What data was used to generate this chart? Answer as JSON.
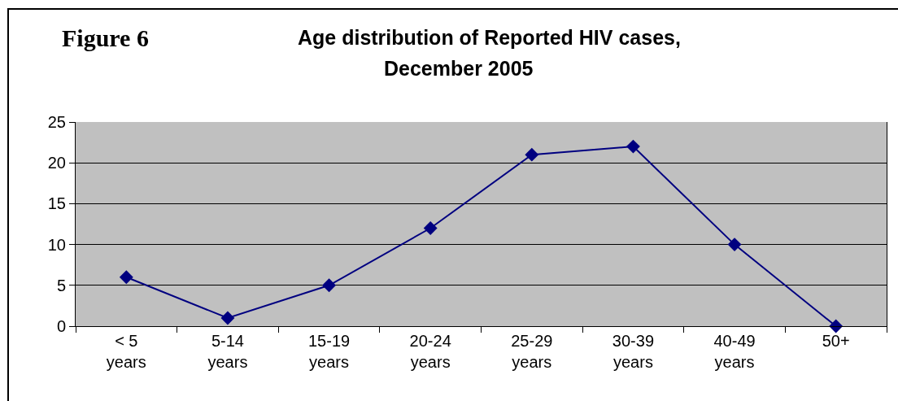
{
  "chart_data": {
    "type": "line",
    "title": "Figure 6",
    "subtitle": "Age distribution of Reported HIV cases,\nDecember 2005",
    "categories": [
      "< 5\nyears",
      "5-14\nyears",
      "15-19\nyears",
      "20-24\nyears",
      "25-29\nyears",
      "30-39\nyears",
      "40-49\nyears",
      "50+"
    ],
    "series": [
      {
        "color": "#000080",
        "values": [
          6,
          1,
          5,
          12,
          21,
          22,
          10,
          0
        ]
      }
    ],
    "ylim": [
      0,
      25
    ],
    "yticks": [
      0,
      5,
      10,
      15,
      20,
      25
    ],
    "grid": "y",
    "marker": "diamond",
    "line_style": "solid"
  }
}
